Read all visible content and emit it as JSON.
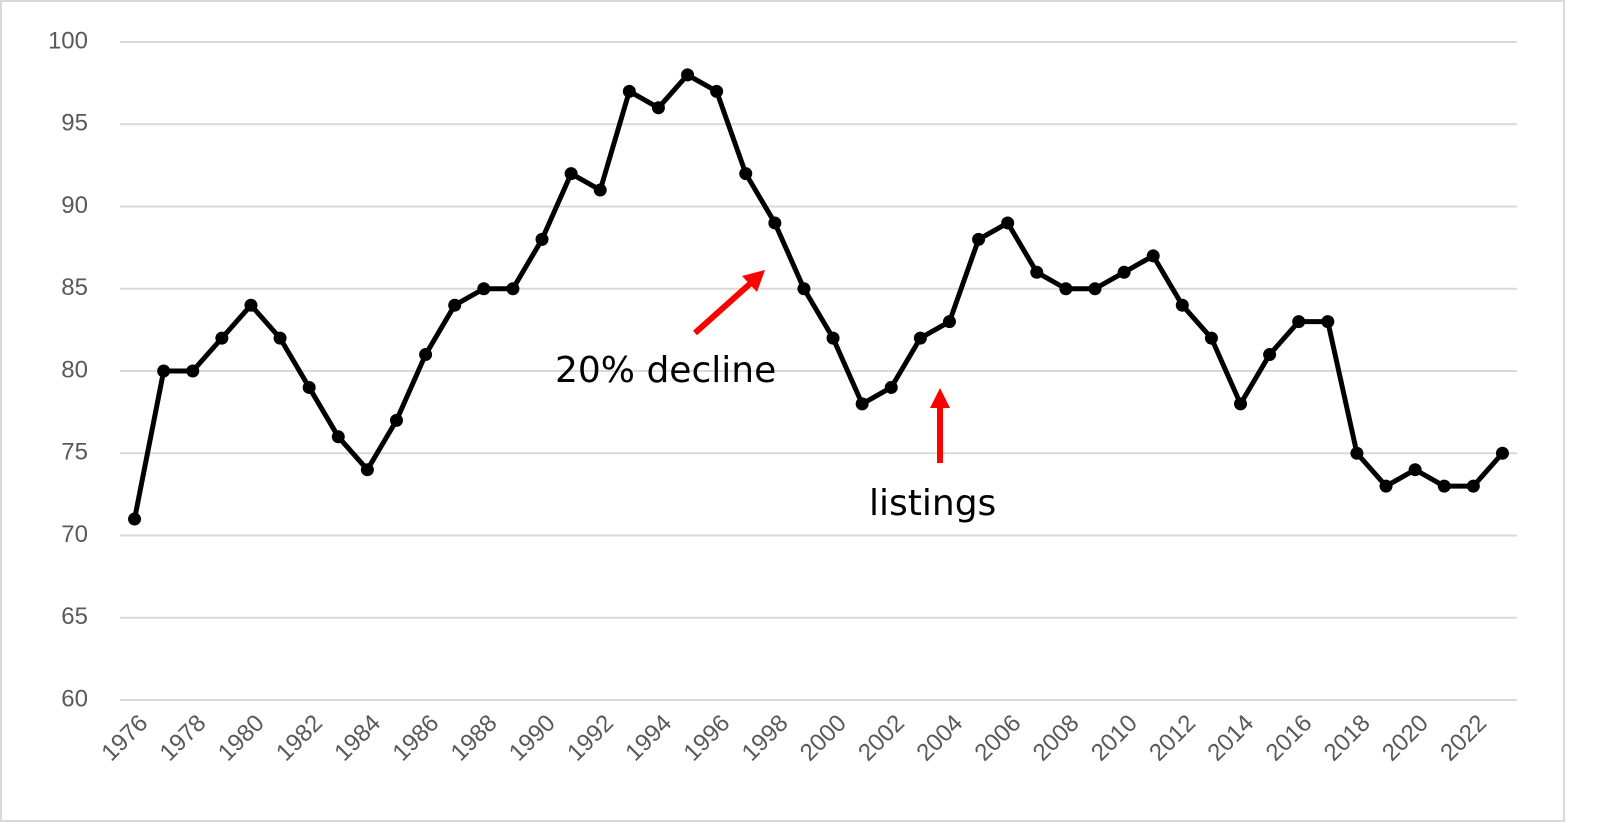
{
  "chart_data": {
    "type": "line",
    "x": [
      1976,
      1977,
      1978,
      1979,
      1980,
      1981,
      1982,
      1983,
      1984,
      1985,
      1986,
      1987,
      1988,
      1989,
      1990,
      1991,
      1992,
      1993,
      1994,
      1995,
      1996,
      1997,
      1998,
      1999,
      2000,
      2001,
      2002,
      2003,
      2004,
      2005,
      2006,
      2007,
      2008,
      2009,
      2010,
      2011,
      2012,
      2013,
      2014,
      2015,
      2016,
      2017,
      2018,
      2019,
      2020,
      2021,
      2022,
      2023
    ],
    "series": [
      {
        "color": "#000000",
        "values": [
          71,
          80,
          80,
          82,
          84,
          82,
          79,
          76,
          74,
          77,
          81,
          84,
          85,
          85,
          88,
          92,
          91,
          97,
          96,
          98,
          97,
          92,
          89,
          85,
          82,
          78,
          79,
          82,
          83,
          88,
          89,
          86,
          85,
          85,
          86,
          87,
          84,
          82,
          78,
          81,
          83,
          83,
          75,
          73,
          74,
          73,
          73,
          75
        ]
      }
    ],
    "xlim": [
      1975.5,
      2023.5
    ],
    "xticks": [
      1976,
      1978,
      1980,
      1982,
      1984,
      1986,
      1988,
      1990,
      1992,
      1994,
      1996,
      1998,
      2000,
      2002,
      2004,
      2006,
      2008,
      2010,
      2012,
      2014,
      2016,
      2018,
      2020,
      2022
    ],
    "ylim": [
      60,
      100
    ],
    "yticks": [
      60,
      65,
      70,
      75,
      80,
      85,
      90,
      95,
      100
    ],
    "grid": true,
    "annotations": [
      "20% decline",
      "listings"
    ]
  }
}
